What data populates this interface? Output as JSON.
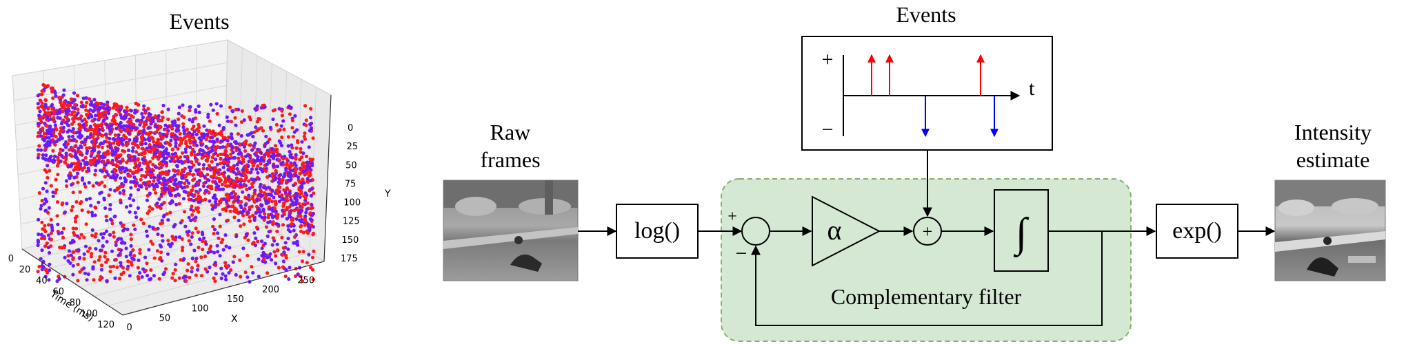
{
  "scatter": {
    "title": "Events",
    "xlabel": "X",
    "ylabel": "Y",
    "tlabel": "Time (ms)",
    "time_ticks": [
      "0",
      "20",
      "40",
      "60",
      "80",
      "100",
      "120"
    ],
    "x_ticks": [
      "0",
      "50",
      "100",
      "150",
      "200",
      "250"
    ],
    "y_ticks": [
      "0",
      "25",
      "50",
      "75",
      "100",
      "125",
      "150",
      "175"
    ],
    "colors": {
      "positive": "#ff1a1a",
      "negative": "#6a1aff"
    }
  },
  "chart_data": {
    "type": "scatter",
    "title": "Events",
    "axes": {
      "time_label": "Time (ms)",
      "x_label": "X",
      "y_label": "Y",
      "time_range": [
        0,
        120
      ],
      "x_range": [
        0,
        250
      ],
      "y_range": [
        0,
        175
      ]
    },
    "grid": true,
    "series": [
      {
        "polarity": "positive",
        "color": "#ff1a1a",
        "approx_count": 1500
      },
      {
        "polarity": "negative",
        "color": "#6a1aff",
        "approx_count": 1500
      }
    ]
  },
  "diagram": {
    "events_title": "Events",
    "raw_frames_label": [
      "Raw",
      "frames"
    ],
    "intensity_label": [
      "Intensity",
      "estimate"
    ],
    "log_label": "log()",
    "exp_label": "exp()",
    "alpha_label": "α",
    "integral_label": "∫",
    "plus_sign": "+",
    "minus_sign": "−",
    "sum_plus": "+",
    "t_label": "t",
    "filter_label": "Complementary filter",
    "colors": {
      "filter_fill": "#d5e8d4",
      "filter_border": "#82b366",
      "pos_event": "#ff0000",
      "neg_event": "#0000ff"
    }
  }
}
